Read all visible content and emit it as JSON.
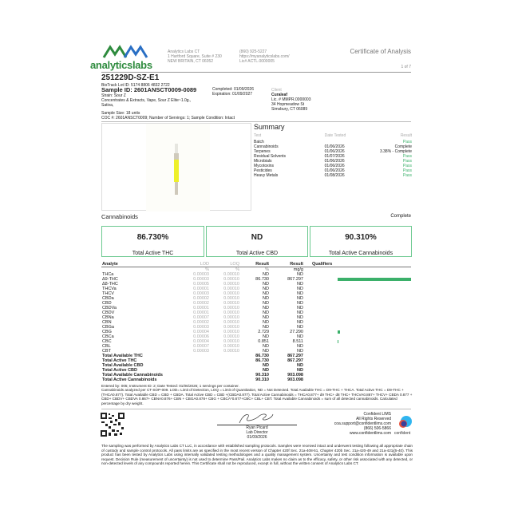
{
  "header": {
    "logo_text": "analyticslabs",
    "lab_name": "Analytics Labs CT",
    "address1": "1 Hartford Square, Suite # 230",
    "address2": "NEW BRITAIN, CT 06052",
    "phone": "(860) 925-5227",
    "website": "https://myanalyticslabs.com/",
    "license": "Lic# ACTL.0000005",
    "doc_title": "Certificate of Analysis",
    "page": "1 of 7"
  },
  "sample": {
    "batch_id": "251229D-SZ-E1",
    "biotrack": "BioTrack Lot ID: 5174 8806 4832 2722",
    "sample_id": "Sample ID: 2601ANSCT0009-0089",
    "strain": "Strain: Sour Z",
    "category": "Concentrates & Extracts, Vape, Sour Z Elite~1.0g.,",
    "type": "Sativa,",
    "completed": "Completed: 01/09/2026",
    "expiration": "Expiration: 01/09/2027",
    "size": "Sample Size: 18 units",
    "coc": "COC #: 2601ANSCT0009; Number of Servings: 1; Sample Condition: Intact"
  },
  "client": {
    "label": "Client",
    "name": "Curaleaf",
    "license": "Lic. # MMPR.0000003",
    "street": "34 Hopmeadow St",
    "city": "Simsbury, CT 06089"
  },
  "summary": {
    "title": "Summary",
    "headers": [
      "Test",
      "Date Tested",
      "Result"
    ],
    "rows": [
      [
        "Batch",
        "",
        "Pass"
      ],
      [
        "Cannabinoids",
        "01/06/2026",
        "Complete"
      ],
      [
        "Terpenes",
        "01/06/2026",
        "3.38% - Complete"
      ],
      [
        "Residual Solvents",
        "01/07/2026",
        "Pass"
      ],
      [
        "Microbials",
        "01/06/2026",
        "Pass"
      ],
      [
        "Mycotoxins",
        "01/06/2026",
        "Pass"
      ],
      [
        "Pesticides",
        "01/06/2026",
        "Pass"
      ],
      [
        "Heavy Metals",
        "01/08/2026",
        "Pass"
      ]
    ]
  },
  "cannabinoids": {
    "title": "Cannabinoids",
    "status": "Complete",
    "boxes": [
      {
        "value": "86.730%",
        "label": "Total Active THC"
      },
      {
        "value": "ND",
        "label": "Total Active CBD"
      },
      {
        "value": "90.310%",
        "label": "Total Active Cannabinoids"
      }
    ],
    "headers": [
      "Analyte",
      "LOD",
      "LOQ",
      "Result",
      "Result",
      "Qualifiers"
    ],
    "units": [
      "%",
      "%",
      "%",
      "mg/g"
    ],
    "rows": [
      [
        "THCa",
        "0.00003",
        "0.00010",
        "ND",
        "ND",
        0
      ],
      [
        "Δ9-THC",
        "0.00003",
        "0.00010",
        "86.730",
        "867.297",
        86.73
      ],
      [
        "Δ8-THC",
        "0.00005",
        "0.00010",
        "ND",
        "ND",
        0
      ],
      [
        "THCVa",
        "0.00001",
        "0.00010",
        "ND",
        "ND",
        0
      ],
      [
        "THCV",
        "0.00003",
        "0.00010",
        "ND",
        "ND",
        0
      ],
      [
        "CBDa",
        "0.00002",
        "0.00010",
        "ND",
        "ND",
        0
      ],
      [
        "CBD",
        "0.00002",
        "0.00010",
        "ND",
        "ND",
        0
      ],
      [
        "CBDVa",
        "0.00001",
        "0.00010",
        "ND",
        "ND",
        0
      ],
      [
        "CBDV",
        "0.00001",
        "0.00010",
        "ND",
        "ND",
        0
      ],
      [
        "CBNa",
        "0.00007",
        "0.00010",
        "ND",
        "ND",
        0
      ],
      [
        "CBN",
        "0.00002",
        "0.00010",
        "ND",
        "ND",
        0
      ],
      [
        "CBGa",
        "0.00003",
        "0.00010",
        "ND",
        "ND",
        0
      ],
      [
        "CBG",
        "0.00004",
        "0.00010",
        "2.729",
        "27.290",
        2.729
      ],
      [
        "CBCa",
        "0.00006",
        "0.00010",
        "ND",
        "ND",
        0
      ],
      [
        "CBC",
        "0.00004",
        "0.00010",
        "0.851",
        "8.511",
        0.851
      ],
      [
        "CBL",
        "0.00007",
        "0.00010",
        "ND",
        "ND",
        0
      ],
      [
        "CBT",
        "0.00003",
        "0.00010",
        "ND",
        "ND",
        0
      ]
    ],
    "totals": [
      [
        "Total Available THC",
        "86.730",
        "867.297"
      ],
      [
        "Total Active THC",
        "86.730",
        "867.297"
      ],
      [
        "Total Available CBD",
        "ND",
        "ND"
      ],
      [
        "Total Active CBD",
        "ND",
        "ND"
      ],
      [
        "Total Available Cannabinoids",
        "90.310",
        "903.098"
      ],
      [
        "Total Active Cannabinoids",
        "90.310",
        "903.098"
      ]
    ],
    "bar_color": "#3bb06a"
  },
  "notes": {
    "line1": "Entered by: 005; Instrument ID: 2; Date Tested: 01/06/2026; 1 servings per container.",
    "line2": "Cannabinoids analyzed per CT-SOP-009. LOD= Limit of Detection, LOQ = Limit of Quantitation, ND = Not Detected. Total Available THC = D9-THC + THCA. Total Active THC = D9-THC + (THCA0.877). Total Available CBD = CBD + CBDA. Total Active CBD = CBD +(CBDA0.877). Total Active Cannabinoids = THCA0.877+ d9 THC+ d8 THC+ THCVA0.867+ THCV+ CBDA 0.877 + CBD+ CBDV+ CBDVA 0.867+ CBNA0.876+ CBN + CBGA0.878+ CBG + CBCA*0.877+CBC+ CBL+ CBT. Total Available Cannabinoids = sum of all detected cannabinoids. Calculated percentage by dry weight."
  },
  "signature": {
    "name": "Ryan Picard",
    "title": "Lab Director",
    "date": "01/09/2026"
  },
  "lims": {
    "name": "Confident LIMS",
    "rights": "All Rights Reserved",
    "email": "coa.support@confidentlims.com",
    "phone": "(866) 506-5866",
    "web": "www.confidentlims.com",
    "logo_text": "confident"
  },
  "disclaimer": "The sampling was performed by Analytics Labs CT LLC, in accordance with established sampling protocols. Samples were received intact and underwent testing following all appropriate chain of custody and sample control protocols. All pass limits are as specified in the most recent version of Chapter 420f Sec. 21a-408-51, Chapter 420b Sec. 21a-420-49 and 21a-421j(5-40). This product has been tested by Analytics Labs using internally validated testing methodologies and a quality management system. Uncertainty and test condition information is available upon request. Decision Rule (measurement of uncertainty) is not used to determine Pass/Fail. Analytics Labs makes no claim as to the efficacy, safety, or other risk associated with any detected, or non-detected levels of any compounds reported herein. This Certificate shall not be reproduced, except in full, without the written consent of Analytics Labs CT."
}
